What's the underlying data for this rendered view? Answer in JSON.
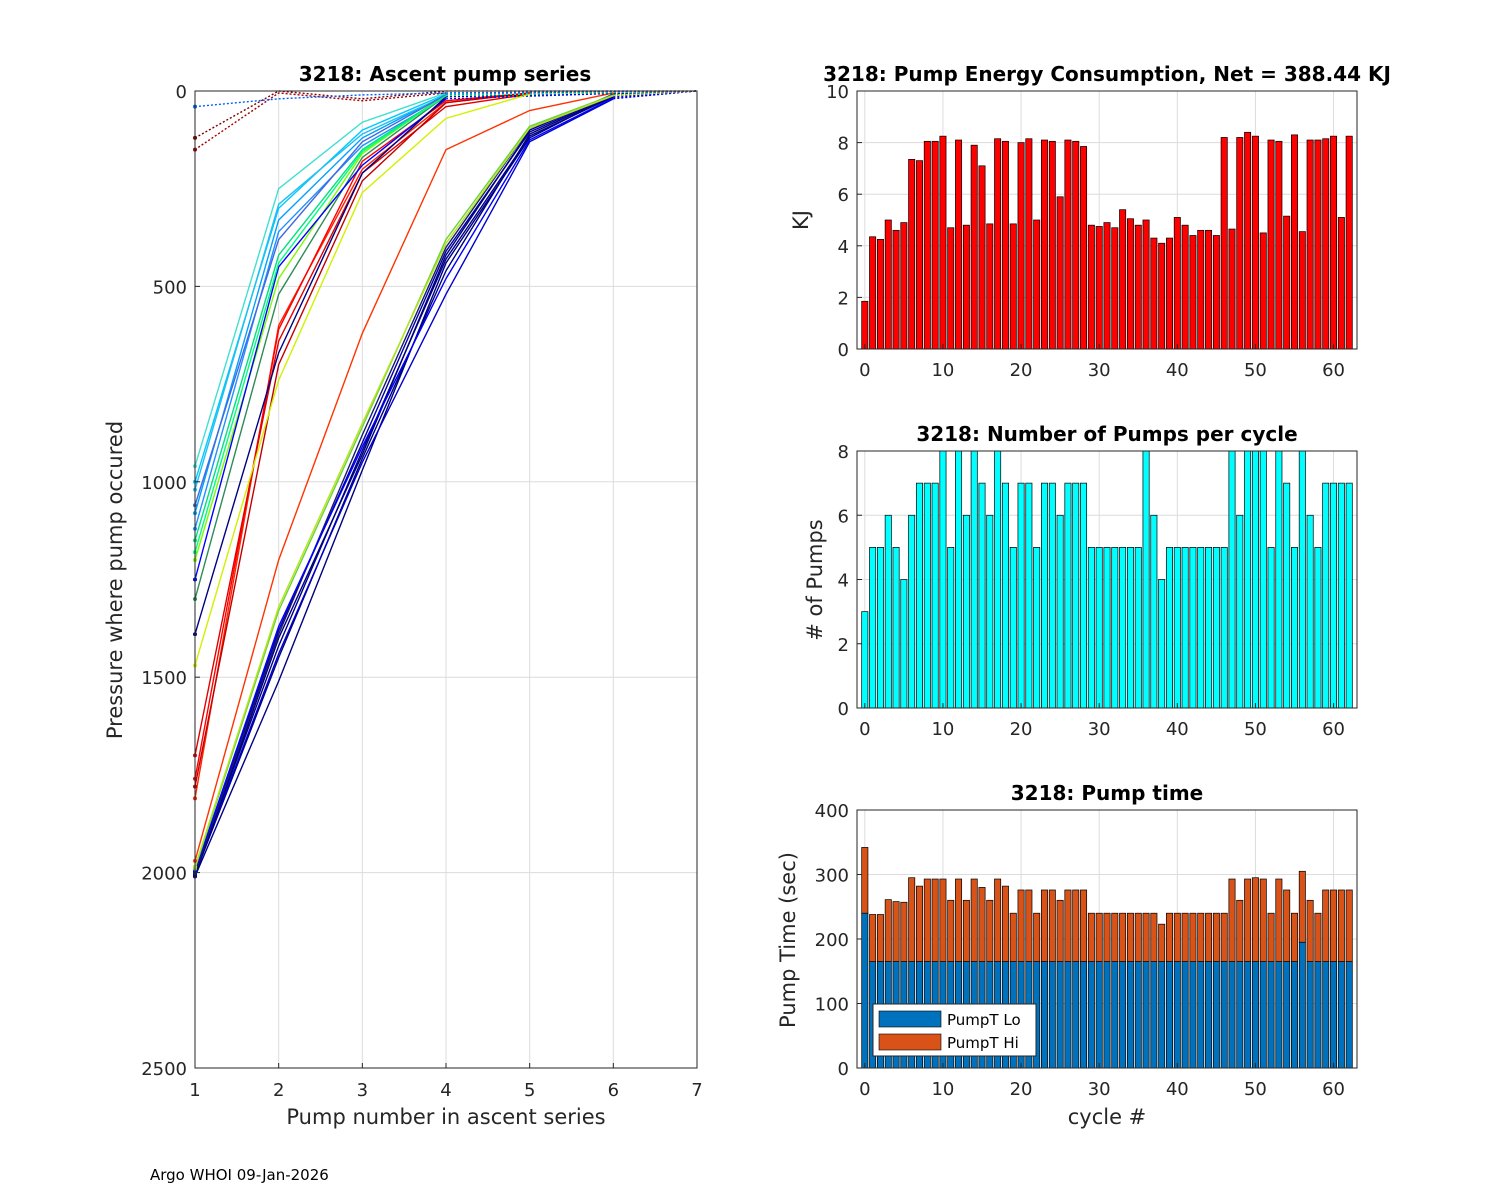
{
  "footer": "Argo WHOI 09-Jan-2026",
  "colors": {
    "energy_bar": "#ff0000",
    "pumps_bar": "#00ffff",
    "pump_lo": "#0072bd",
    "pump_hi": "#d95319",
    "grid": "#dcdcdc",
    "axis": "#262626"
  },
  "chart_data": [
    {
      "id": "ascent",
      "type": "line",
      "title": "3218: Ascent pump series",
      "xlabel": "Pump number in ascent series",
      "ylabel": "Pressure where pump occured",
      "xlim": [
        1,
        7
      ],
      "ylim": [
        0,
        2500
      ],
      "y_reversed": true,
      "xticks": [
        1,
        2,
        3,
        4,
        5,
        6,
        7
      ],
      "yticks": [
        0,
        500,
        1000,
        1500,
        2000,
        2500
      ],
      "grid": true,
      "series": [
        {
          "color": "#000080",
          "values": [
            2010,
            1510,
            970,
            440,
            120,
            10
          ]
        },
        {
          "color": "#000080",
          "values": [
            2005,
            1450,
            940,
            460,
            110,
            12
          ]
        },
        {
          "color": "#00008b",
          "values": [
            2000,
            1420,
            920,
            430,
            115,
            15
          ]
        },
        {
          "color": "#0000a0",
          "values": [
            1998,
            1380,
            900,
            410,
            105,
            10
          ]
        },
        {
          "color": "#0000cd",
          "values": [
            2002,
            1440,
            950,
            520,
            130,
            20
          ]
        },
        {
          "color": "#000080",
          "values": [
            2008,
            1400,
            930,
            420,
            100,
            8
          ]
        },
        {
          "color": "#191970",
          "values": [
            2001,
            1390,
            880,
            400,
            95,
            12
          ]
        },
        {
          "color": "#0000ff",
          "values": [
            1995,
            1370,
            910,
            480,
            125,
            18
          ]
        },
        {
          "color": "#6cd23a",
          "values": [
            1990,
            1330,
            860,
            380,
            90,
            10
          ]
        },
        {
          "color": "#b4e61e",
          "values": [
            1985,
            1320,
            850,
            390,
            95,
            12
          ]
        },
        {
          "color": "#ff3300",
          "values": [
            1970,
            1200,
            620,
            150,
            50,
            5
          ]
        },
        {
          "color": "#ff2200",
          "values": [
            1810,
            600,
            200,
            30,
            5
          ]
        },
        {
          "color": "#ff0000",
          "values": [
            1760,
            610,
            180,
            25,
            5
          ]
        },
        {
          "color": "#e00000",
          "values": [
            1700,
            640,
            210,
            40,
            8
          ]
        },
        {
          "color": "#c00000",
          "values": [
            1780,
            700,
            230,
            30,
            5
          ]
        },
        {
          "color": "#00a0ff",
          "values": [
            1080,
            330,
            120,
            10
          ]
        },
        {
          "color": "#00c8ff",
          "values": [
            1000,
            300,
            100,
            8
          ]
        },
        {
          "color": "#40e0d0",
          "values": [
            960,
            250,
            80,
            5
          ]
        },
        {
          "color": "#20c0f0",
          "values": [
            1020,
            290,
            110,
            12
          ]
        },
        {
          "color": "#1e90ff",
          "values": [
            1120,
            360,
            140,
            15
          ]
        },
        {
          "color": "#00e080",
          "values": [
            1150,
            420,
            150,
            10
          ]
        },
        {
          "color": "#7cfc00",
          "values": [
            1200,
            480,
            160,
            10
          ]
        },
        {
          "color": "#2e8b57",
          "values": [
            1300,
            520,
            170,
            12
          ]
        },
        {
          "color": "#0000ff",
          "values": [
            1250,
            450,
            190,
            20
          ]
        },
        {
          "color": "#000080",
          "values": [
            1390,
            670,
            210,
            15
          ]
        },
        {
          "color": "#d2f000",
          "values": [
            1470,
            740,
            260,
            70,
            8
          ]
        },
        {
          "color": "#4169e1",
          "values": [
            1060,
            380,
            130,
            10
          ]
        },
        {
          "color": "#00ff7f",
          "values": [
            1180,
            440,
            155,
            12
          ]
        },
        {
          "color": "#800000",
          "values": [
            120,
            0,
            20,
            0
          ]
        },
        {
          "color": "#a00000",
          "values": [
            150,
            5,
            25,
            5
          ]
        },
        {
          "color": "#0060ff",
          "values": [
            40,
            20,
            10,
            5
          ]
        }
      ]
    },
    {
      "id": "energy",
      "type": "bar",
      "title": "3218: Pump Energy Consumption,  Net = 388.44 KJ",
      "xlabel": "",
      "ylabel": "KJ",
      "xlim": [
        -1,
        63
      ],
      "ylim": [
        0,
        10
      ],
      "xticks": [
        0,
        10,
        20,
        30,
        40,
        50,
        60
      ],
      "yticks": [
        0,
        2,
        4,
        6,
        8,
        10
      ],
      "grid": true,
      "x": [
        0,
        1,
        2,
        3,
        4,
        5,
        6,
        7,
        8,
        9,
        10,
        11,
        12,
        13,
        14,
        15,
        16,
        17,
        18,
        19,
        20,
        21,
        22,
        23,
        24,
        25,
        26,
        27,
        28,
        29,
        30,
        31,
        32,
        33,
        34,
        35,
        36,
        37,
        38,
        39,
        40,
        41,
        42,
        43,
        44,
        45,
        46,
        47,
        48,
        49,
        50,
        51,
        52,
        53,
        54,
        55,
        56,
        57,
        58,
        59,
        60,
        61,
        62
      ],
      "values": [
        1.85,
        4.35,
        4.25,
        5.0,
        4.6,
        4.9,
        7.35,
        7.3,
        8.05,
        8.05,
        8.25,
        4.7,
        8.1,
        4.8,
        7.9,
        7.1,
        4.85,
        8.15,
        8.05,
        4.85,
        8.0,
        8.15,
        5.0,
        8.1,
        8.05,
        5.9,
        8.1,
        8.05,
        7.85,
        4.8,
        4.75,
        4.9,
        4.7,
        5.4,
        5.05,
        4.8,
        5.0,
        4.3,
        4.1,
        4.3,
        5.1,
        4.8,
        4.4,
        4.6,
        4.6,
        4.4,
        8.2,
        4.65,
        8.2,
        8.4,
        8.25,
        4.5,
        8.1,
        8.05,
        5.15,
        8.3,
        4.55,
        8.1,
        8.1,
        8.15,
        8.25,
        5.1,
        8.25
      ]
    },
    {
      "id": "pumps",
      "type": "bar",
      "title": "3218: Number of Pumps per cycle",
      "xlabel": "",
      "ylabel": "# of Pumps",
      "xlim": [
        -1,
        63
      ],
      "ylim": [
        0,
        8
      ],
      "xticks": [
        0,
        10,
        20,
        30,
        40,
        50,
        60
      ],
      "yticks": [
        0,
        2,
        4,
        6,
        8
      ],
      "grid": true,
      "x": [
        0,
        1,
        2,
        3,
        4,
        5,
        6,
        7,
        8,
        9,
        10,
        11,
        12,
        13,
        14,
        15,
        16,
        17,
        18,
        19,
        20,
        21,
        22,
        23,
        24,
        25,
        26,
        27,
        28,
        29,
        30,
        31,
        32,
        33,
        34,
        35,
        36,
        37,
        38,
        39,
        40,
        41,
        42,
        43,
        44,
        45,
        46,
        47,
        48,
        49,
        50,
        51,
        52,
        53,
        54,
        55,
        56,
        57,
        58,
        59,
        60,
        61,
        62
      ],
      "values": [
        3,
        5,
        5,
        6,
        5,
        4,
        6,
        7,
        7,
        7,
        8,
        5,
        8,
        6,
        8,
        7,
        6,
        8,
        7,
        5,
        7,
        7,
        5,
        7,
        7,
        6,
        7,
        7,
        7,
        5,
        5,
        5,
        5,
        5,
        5,
        5,
        8,
        6,
        4,
        5,
        5,
        5,
        5,
        5,
        5,
        5,
        5,
        8,
        6,
        8,
        8,
        8,
        5,
        8,
        7,
        5,
        8,
        6,
        5,
        7,
        7,
        7,
        7
      ]
    },
    {
      "id": "pumptime",
      "type": "bar",
      "stacked": true,
      "title": "3218: Pump time",
      "xlabel": "cycle #",
      "ylabel": "Pump Time (sec)",
      "xlim": [
        -1,
        63
      ],
      "ylim": [
        0,
        400
      ],
      "xticks": [
        0,
        10,
        20,
        30,
        40,
        50,
        60
      ],
      "yticks": [
        0,
        100,
        200,
        300,
        400
      ],
      "grid": true,
      "legend_position": "bottom-left",
      "x": [
        0,
        1,
        2,
        3,
        4,
        5,
        6,
        7,
        8,
        9,
        10,
        11,
        12,
        13,
        14,
        15,
        16,
        17,
        18,
        19,
        20,
        21,
        22,
        23,
        24,
        25,
        26,
        27,
        28,
        29,
        30,
        31,
        32,
        33,
        34,
        35,
        36,
        37,
        38,
        39,
        40,
        41,
        42,
        43,
        44,
        45,
        46,
        47,
        48,
        49,
        50,
        51,
        52,
        53,
        54,
        55,
        56,
        57,
        58,
        59,
        60,
        61,
        62
      ],
      "series": [
        {
          "name": "PumpT Lo",
          "values": [
            240,
            165,
            165,
            165,
            165,
            165,
            165,
            165,
            165,
            165,
            165,
            165,
            165,
            165,
            165,
            165,
            165,
            165,
            165,
            165,
            165,
            165,
            165,
            165,
            165,
            165,
            165,
            165,
            165,
            165,
            165,
            165,
            165,
            165,
            165,
            165,
            165,
            165,
            165,
            165,
            165,
            165,
            165,
            165,
            165,
            165,
            165,
            165,
            165,
            165,
            165,
            165,
            165,
            165,
            165,
            165,
            195,
            165,
            165,
            165,
            165,
            165,
            165
          ]
        },
        {
          "name": "PumpT Hi",
          "values": [
            102,
            73,
            73,
            96,
            93,
            92,
            130,
            117,
            128,
            128,
            128,
            95,
            128,
            95,
            128,
            115,
            95,
            128,
            117,
            75,
            111,
            111,
            75,
            111,
            111,
            95,
            111,
            111,
            111,
            75,
            75,
            75,
            75,
            75,
            75,
            75,
            75,
            75,
            58,
            75,
            75,
            75,
            75,
            75,
            75,
            75,
            75,
            128,
            95,
            128,
            130,
            128,
            75,
            128,
            111,
            75,
            110,
            95,
            75,
            111,
            111,
            111,
            111
          ]
        }
      ]
    }
  ]
}
